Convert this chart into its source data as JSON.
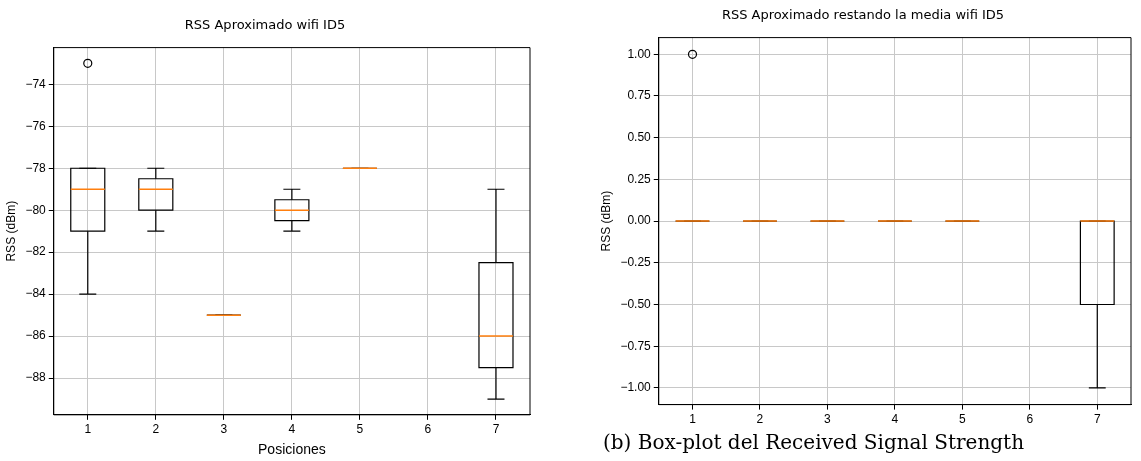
{
  "chart_data": [
    {
      "type": "box",
      "title": "RSS Aproximado wifi ID5",
      "xlabel": "Posiciones",
      "ylabel": "RSS (dBm)",
      "categories": [
        "1",
        "2",
        "3",
        "4",
        "5",
        "6",
        "7"
      ],
      "ylim": [
        -89.75,
        -72.25
      ],
      "yticks": [
        -88,
        -86,
        -84,
        -82,
        -80,
        -78,
        -76,
        -74
      ],
      "grid": true,
      "marker": "circle",
      "series": [
        {
          "color": "#000000",
          "boxes": [
            {
              "low": -84,
              "q1": -81,
              "median": -79,
              "q3": -78,
              "high": -78,
              "outliers": [
                -73
              ]
            },
            {
              "low": -81,
              "q1": -80,
              "median": -79,
              "q3": -78.5,
              "high": -78
            },
            {
              "low": -85,
              "q1": -85,
              "median": -85,
              "q3": -85,
              "high": -85
            },
            {
              "low": -81,
              "q1": -80.5,
              "median": -80,
              "q3": -79.5,
              "high": -79
            },
            {
              "low": -78,
              "q1": -78,
              "median": -78,
              "q3": -78,
              "high": -78
            },
            null,
            {
              "low": -89,
              "q1": -87.5,
              "median": -86,
              "q3": -82.5,
              "high": -79
            }
          ]
        }
      ]
    },
    {
      "type": "box",
      "title": "RSS Aproximado restando la media wifi ID5",
      "ylabel": "RSS (dBm)",
      "categories": [
        "1",
        "2",
        "3",
        "4",
        "5",
        "6",
        "7"
      ],
      "ylim": [
        -1.1,
        1.1
      ],
      "yticks": [
        {
          "value": -1,
          "label": "−1.00"
        },
        {
          "value": -0.75,
          "label": "−0.75"
        },
        {
          "value": -0.5,
          "label": "−0.50"
        },
        {
          "value": -0.25,
          "label": "−0.25"
        },
        {
          "value": 0,
          "label": "0.00"
        },
        {
          "value": 0.25,
          "label": "0.25"
        },
        {
          "value": 0.5,
          "label": "0.50"
        },
        {
          "value": 0.75,
          "label": "0.75"
        },
        {
          "value": 1,
          "label": "1.00"
        }
      ],
      "grid": true,
      "marker": "circle",
      "annotations": [
        "(b) Box-plot del Received Signal Strength"
      ],
      "series": [
        {
          "color": "#000000",
          "boxes": [
            {
              "low": 0,
              "q1": 0,
              "median": 0,
              "q3": 0,
              "high": 0,
              "outliers": [
                1
              ]
            },
            {
              "low": 0,
              "q1": 0,
              "median": 0,
              "q3": 0,
              "high": 0
            },
            {
              "low": 0,
              "q1": 0,
              "median": 0,
              "q3": 0,
              "high": 0
            },
            {
              "low": 0,
              "q1": 0,
              "median": 0,
              "q3": 0,
              "high": 0
            },
            {
              "low": 0,
              "q1": 0,
              "median": 0,
              "q3": 0,
              "high": 0
            },
            null,
            {
              "low": -1,
              "q1": -0.5,
              "median": 0,
              "q3": 0,
              "high": 0
            }
          ]
        }
      ]
    }
  ]
}
